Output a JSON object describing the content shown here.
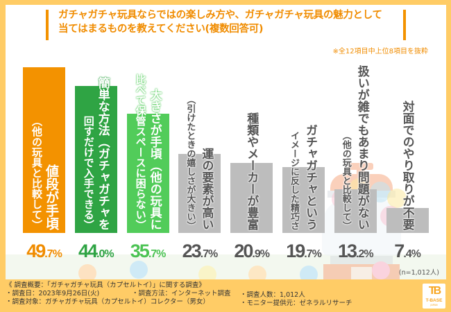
{
  "header": {
    "title": "ガチャガチャ玩具ならではの楽しみ方や、ガチャガチャ玩具の魅力として\n当てはまるものを教えてください(複数回答可)",
    "note": "※全12項目中上位8項目を抜粋"
  },
  "chart_data": {
    "type": "bar",
    "title": "ガチャガチャ玩具ならではの楽しみ方や、ガチャガチャ玩具の魅力として当てはまるものを教えてください(複数回答可)",
    "subtitle": "※全12項目中上位8項目を抜粋",
    "xlabel": "",
    "ylabel": "",
    "ylim": [
      0,
      50
    ],
    "unit": "%",
    "grid": false,
    "categories": [
      "値段が手頃（他の玩具と比較して）",
      "簡単な方法（ガチャガチャを回すだけで入手できる）",
      "大きさが手頃（他の玩具に比べて保管スペースに困らない）",
      "運の要素が高い（引けたときの嬉しさが大きい）",
      "種類やメーカーが豊富",
      "ガチャガチャというイメージに反した精巧さ",
      "扱いが雑でもあまり問題がない（他の玩具と比較して）",
      "対面でのやり取りが不要"
    ],
    "values": [
      49.7,
      44.0,
      35.7,
      23.7,
      20.9,
      19.7,
      13.2,
      7.4
    ],
    "bars": [
      {
        "main": "値段が手頃",
        "sub": "（他の玩具と比較して）",
        "value": 49.7,
        "int": "49",
        "dec": ".7%",
        "color": "#f39200",
        "text_color": "#f08c00"
      },
      {
        "main": "簡単な方法（ガチャガチャを",
        "sub": "回すだけで入手できる）",
        "value": 44.0,
        "int": "44",
        "dec": ".0%",
        "color": "#2fa444",
        "text_color": "#2fa444"
      },
      {
        "main": "大きさが手頃（他の玩具に",
        "sub": "比べて保管スペースに困らない）",
        "value": 35.7,
        "int": "35",
        "dec": ".7%",
        "color": "#52cc5a",
        "text_color": "#4cc354"
      },
      {
        "main": "運の要素が高い",
        "sub": "（引けたときの嬉しさが大きい）",
        "value": 23.7,
        "int": "23",
        "dec": ".7%",
        "color": "#bdbdbd",
        "text_color": "#555555"
      },
      {
        "main": "種類やメーカーが豊富",
        "sub": "",
        "value": 20.9,
        "int": "20",
        "dec": ".9%",
        "color": "#bdbdbd",
        "text_color": "#555555"
      },
      {
        "main": "ガチャガチャという",
        "sub": "イメージに反した精巧さ",
        "value": 19.7,
        "int": "19",
        "dec": ".7%",
        "color": "#bdbdbd",
        "text_color": "#555555"
      },
      {
        "main": "扱いが雑でもあまり問題がない",
        "sub": "（他の玩具と比較して）",
        "value": 13.2,
        "int": "13",
        "dec": ".2%",
        "color": "#bdbdbd",
        "text_color": "#555555"
      },
      {
        "main": "対面でのやり取りが不要",
        "sub": "",
        "value": 7.4,
        "int": "7",
        "dec": ".4%",
        "color": "#bdbdbd",
        "text_color": "#555555"
      }
    ],
    "sample_size": "(n=1,012人)"
  },
  "footer": {
    "line1": "《 調査概要：「ガチャガチャ玩具（カプセルトイ）」に関する調査》",
    "date": "・調査日：2023年9月26日(火)",
    "method": "・調査方法：インターネット調査",
    "count": "・調査人数：1,012人",
    "target": "・調査対象：ガチャガチャ玩具（カプセルトイ）コレクター（男女）",
    "provider": "・モニター提供元：ゼネラルリサーチ"
  },
  "logo": {
    "text": "T-BASE",
    "sub": "JAPAN",
    "mark": "TB"
  },
  "colors": {
    "frame": "#ffcc66",
    "accent": "#f39200",
    "dark_green": "#2fa444",
    "light_green": "#52cc5a",
    "gray": "#bdbdbd"
  }
}
